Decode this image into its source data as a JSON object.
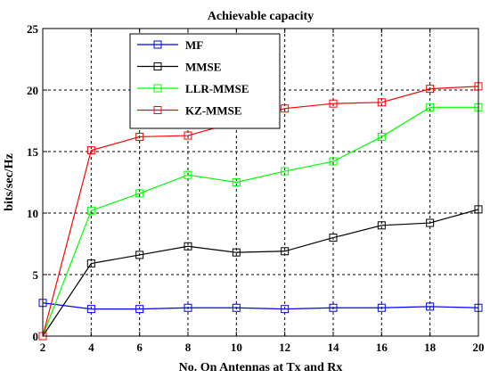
{
  "chart_data": {
    "type": "line",
    "title": "Achievable capacity",
    "xlabel": "No. On Antennas at Tx and Rx",
    "ylabel": "bits/sec/Hz",
    "xlim": [
      2,
      20
    ],
    "ylim": [
      0,
      25
    ],
    "x": [
      2,
      4,
      6,
      8,
      10,
      12,
      14,
      16,
      18,
      20
    ],
    "xticks": [
      2,
      4,
      6,
      8,
      10,
      12,
      14,
      16,
      18,
      20
    ],
    "yticks": [
      0,
      5,
      10,
      15,
      20,
      25
    ],
    "grid": true,
    "legend_position": "top-left",
    "series": [
      {
        "name": "MF",
        "color": "#0000ff",
        "marker": "square",
        "values": [
          2.7,
          2.2,
          2.2,
          2.3,
          2.3,
          2.2,
          2.3,
          2.3,
          2.4,
          2.3
        ]
      },
      {
        "name": "MMSE",
        "color": "#000000",
        "marker": "square",
        "values": [
          0.0,
          5.9,
          6.6,
          7.3,
          6.8,
          6.9,
          8.0,
          9.0,
          9.2,
          10.3
        ]
      },
      {
        "name": "LLR-MMSE",
        "color": "#00ff00",
        "marker": "square",
        "values": [
          0.0,
          10.2,
          11.6,
          13.1,
          12.5,
          13.4,
          14.2,
          16.2,
          18.6,
          18.6
        ]
      },
      {
        "name": "KZ-MMSE",
        "color": "#ff0000",
        "marker": "square",
        "values": [
          0.0,
          15.1,
          16.2,
          16.3,
          17.4,
          18.5,
          18.9,
          19.0,
          20.1,
          20.3
        ]
      }
    ]
  }
}
